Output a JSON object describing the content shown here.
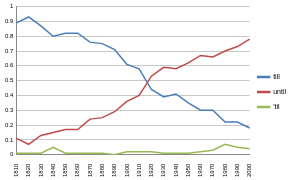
{
  "chart_data": {
    "type": "line",
    "categories": [
      "1810",
      "1820",
      "1830",
      "1840",
      "1850",
      "1860",
      "1870",
      "1880",
      "1890",
      "1900",
      "1910",
      "1920",
      "1930",
      "1940",
      "1950",
      "1960",
      "1970",
      "1980",
      "1990",
      "2000"
    ],
    "series": [
      {
        "name": "till",
        "color": "#4a7ebb",
        "values": [
          0.89,
          0.93,
          0.87,
          0.8,
          0.82,
          0.82,
          0.76,
          0.75,
          0.71,
          0.61,
          0.58,
          0.44,
          0.39,
          0.41,
          0.35,
          0.3,
          0.3,
          0.22,
          0.22,
          0.18
        ]
      },
      {
        "name": "until",
        "color": "#be4b48",
        "values": [
          0.11,
          0.07,
          0.13,
          0.15,
          0.17,
          0.17,
          0.24,
          0.25,
          0.29,
          0.36,
          0.4,
          0.53,
          0.59,
          0.58,
          0.62,
          0.67,
          0.66,
          0.7,
          0.73,
          0.78
        ]
      },
      {
        "name": "'til",
        "color": "#98b954",
        "values": [
          0.01,
          0.01,
          0.01,
          0.05,
          0.01,
          0.01,
          0.01,
          0.01,
          0.0,
          0.02,
          0.02,
          0.02,
          0.01,
          0.01,
          0.01,
          0.02,
          0.03,
          0.07,
          0.05,
          0.04
        ]
      }
    ],
    "ylim": [
      0,
      1
    ],
    "yticks": [
      0,
      0.1,
      0.2,
      0.3,
      0.4,
      0.5,
      0.6,
      0.7,
      0.8,
      0.9,
      1
    ],
    "grid": true,
    "legend": "right"
  }
}
